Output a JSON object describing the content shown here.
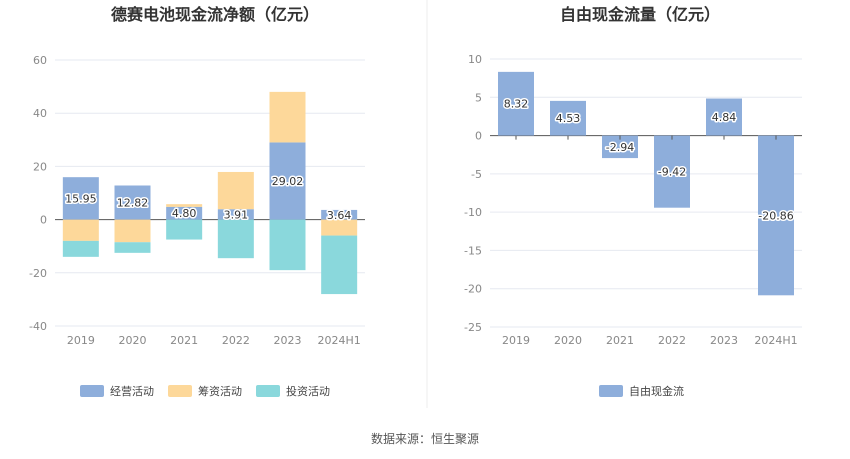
{
  "footer": {
    "source": "数据来源：恒生聚源"
  },
  "chart_data": [
    {
      "type": "bar",
      "stacked": true,
      "title": "德赛电池现金流净额（亿元）",
      "categories": [
        "2019",
        "2020",
        "2021",
        "2022",
        "2023",
        "2024H1"
      ],
      "ylim": [
        -40,
        60
      ],
      "yticks": [
        -40,
        -20,
        0,
        20,
        40,
        60
      ],
      "grid": true,
      "legend_position": "bottom",
      "series": [
        {
          "name": "经营活动",
          "color": "#8eaedb",
          "values": [
            15.95,
            12.82,
            4.8,
            3.91,
            29.02,
            3.64
          ],
          "labels": [
            "15.95",
            "12.82",
            "4.80",
            "3.91",
            "29.02",
            "3.64"
          ]
        },
        {
          "name": "筹资活动",
          "color": "#fdd89a",
          "values": [
            -8.0,
            -8.5,
            1.0,
            14.0,
            19.0,
            -6.0
          ]
        },
        {
          "name": "投资活动",
          "color": "#8ad8dc",
          "values": [
            -6.0,
            -4.0,
            -7.5,
            -14.5,
            -19.0,
            -22.0
          ]
        }
      ]
    },
    {
      "type": "bar",
      "title": "自由现金流量（亿元）",
      "categories": [
        "2019",
        "2020",
        "2021",
        "2022",
        "2023",
        "2024H1"
      ],
      "ylim": [
        -25,
        10
      ],
      "yticks": [
        -25,
        -20,
        -15,
        -10,
        -5,
        0,
        5,
        10
      ],
      "grid": true,
      "legend_position": "bottom",
      "series": [
        {
          "name": "自由现金流",
          "color": "#8eaedb",
          "values": [
            8.32,
            4.53,
            -2.94,
            -9.42,
            4.84,
            -20.86
          ],
          "labels": [
            "8.32",
            "4.53",
            "-2.94",
            "-9.42",
            "4.84",
            "-20.86"
          ]
        }
      ]
    }
  ]
}
